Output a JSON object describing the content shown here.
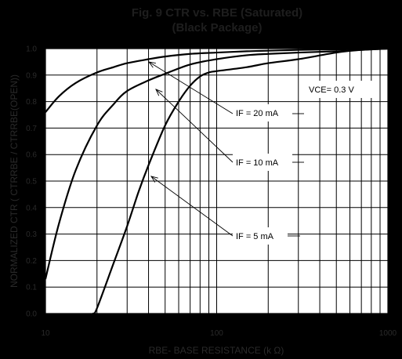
{
  "chart_data": {
    "type": "line",
    "title": "Fig. 9  CTR vs. RBE (Saturated)",
    "subtitle": "(Black Package)",
    "xlabel": "RBE- BASE RESISTANCE (k Ω)",
    "ylabel": "NORMALIZED CTR ( CTRRBE / CTRRBE(OPEN))",
    "x_scale": "log",
    "xlim": [
      10,
      1000
    ],
    "ylim": [
      0.0,
      1.0
    ],
    "x_ticks": [
      "10",
      "100",
      "1000"
    ],
    "y_ticks": [
      "0.0",
      "0.1",
      "0.2",
      "0.3",
      "0.4",
      "0.5",
      "0.6",
      "0.7",
      "0.8",
      "0.9",
      "1.0"
    ],
    "grid": true,
    "series": [
      {
        "name": "IF = 20 mA",
        "x": [
          10,
          12,
          15,
          20,
          25,
          30,
          40,
          50,
          70,
          100,
          150,
          200,
          300,
          500,
          700,
          1000
        ],
        "y": [
          0.76,
          0.82,
          0.87,
          0.91,
          0.93,
          0.945,
          0.96,
          0.97,
          0.98,
          0.985,
          0.99,
          0.992,
          0.995,
          0.997,
          0.998,
          1.0
        ]
      },
      {
        "name": "IF = 10 mA",
        "x": [
          10,
          12,
          15,
          20,
          25,
          30,
          40,
          50,
          70,
          100,
          150,
          200,
          300,
          500,
          700,
          1000
        ],
        "y": [
          0.13,
          0.34,
          0.54,
          0.71,
          0.79,
          0.84,
          0.88,
          0.905,
          0.94,
          0.96,
          0.975,
          0.98,
          0.985,
          0.99,
          0.995,
          1.0
        ]
      },
      {
        "name": "IF = 5 mA",
        "x": [
          19,
          20,
          25,
          30,
          35,
          40,
          50,
          60,
          70,
          80,
          90,
          100,
          150,
          200,
          300,
          500,
          700,
          1000
        ],
        "y": [
          0.0,
          0.02,
          0.19,
          0.33,
          0.46,
          0.56,
          0.71,
          0.8,
          0.86,
          0.895,
          0.91,
          0.915,
          0.93,
          0.945,
          0.96,
          0.985,
          0.995,
          1.0
        ]
      }
    ],
    "annotations": {
      "vce": "VCE= 0.3 V",
      "if20": "IF  = 20 mA",
      "if10": "IF  = 10 mA",
      "if5": "IF  = 5 mA"
    }
  }
}
